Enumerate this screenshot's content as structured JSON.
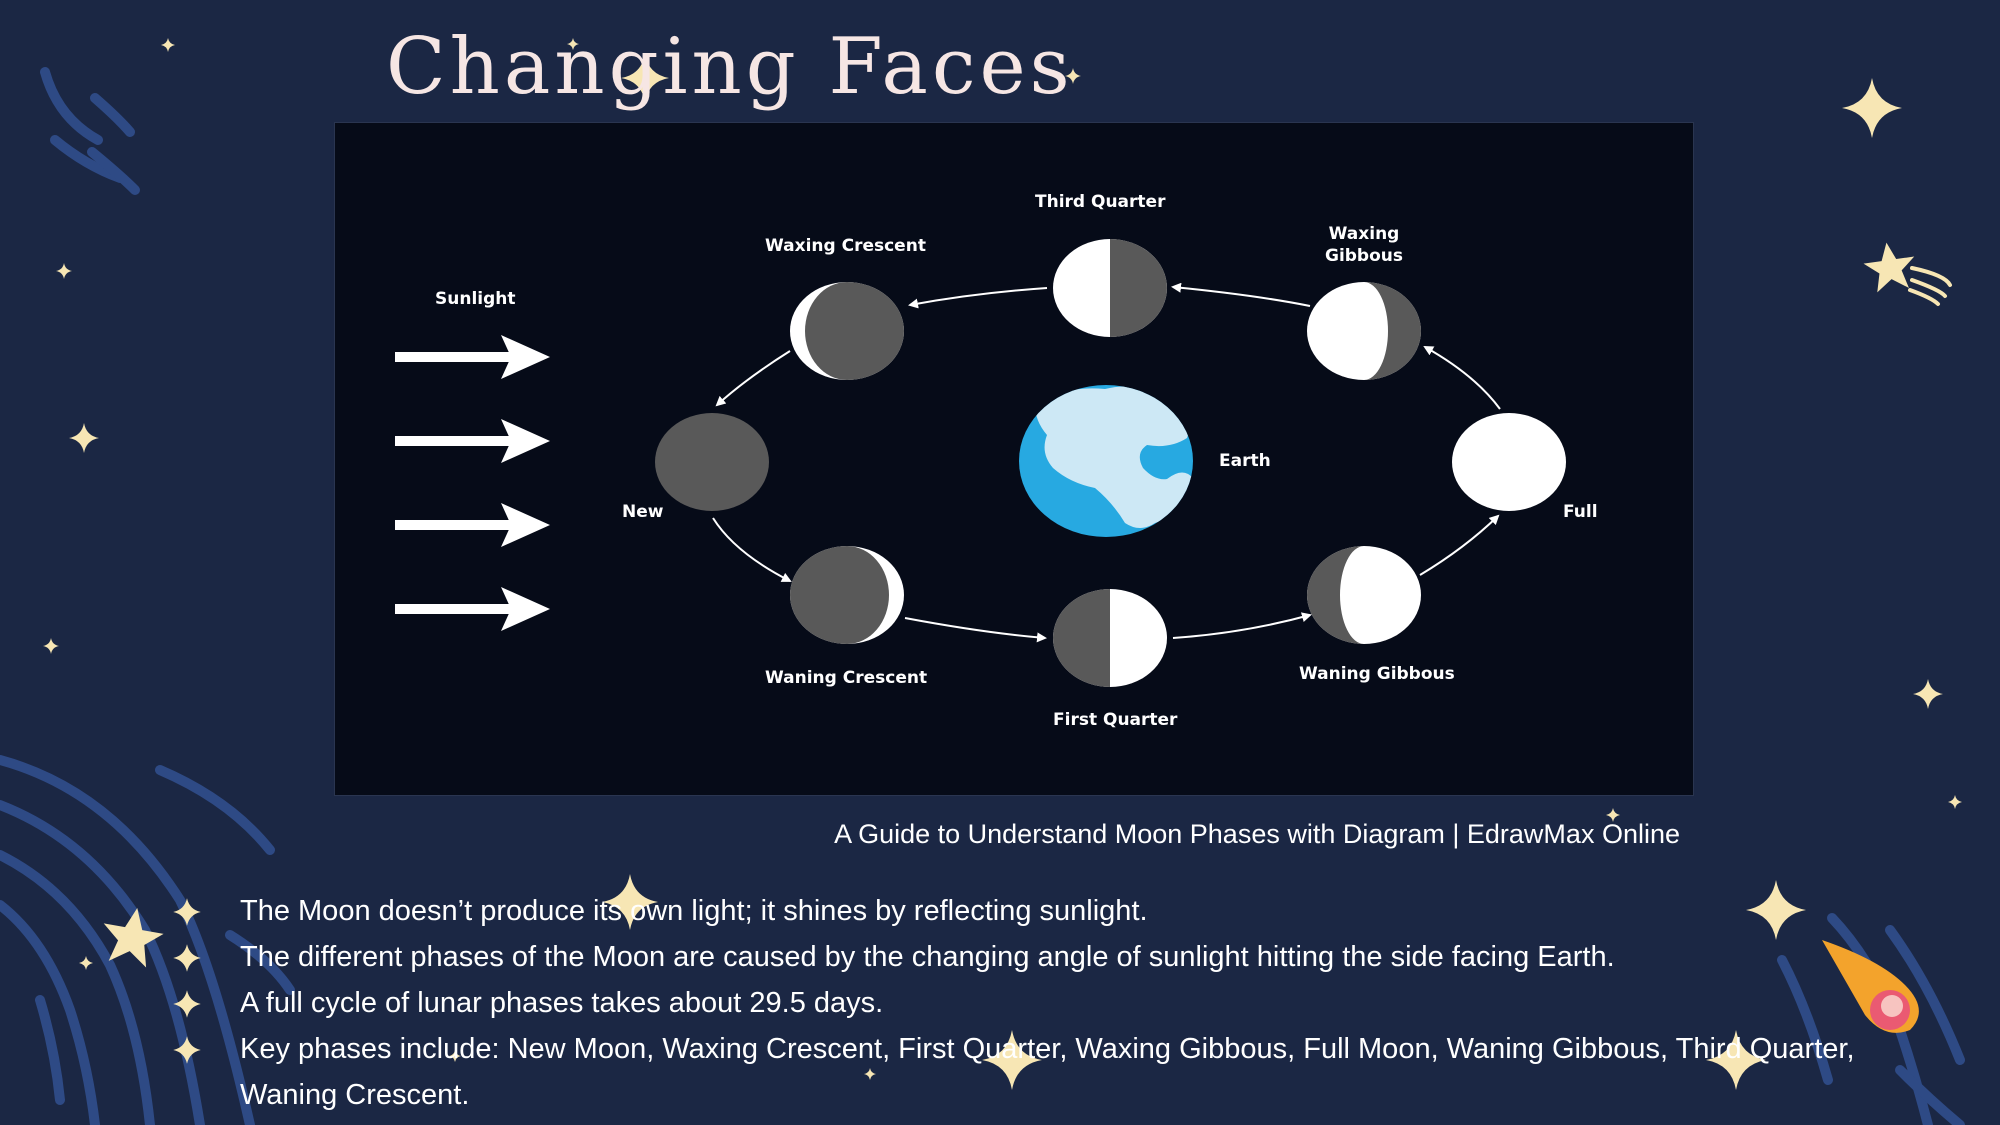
{
  "slide": {
    "title": "Changing Faces",
    "caption": "A Guide to Understand Moon Phases with Diagram | EdrawMax Online",
    "bullets": [
      "The Moon doesn’t produce its own light; it shines by reflecting sunlight.",
      "The different phases of the Moon are caused by the changing angle of sunlight hitting the side facing Earth.",
      "A full cycle of lunar phases takes about 29.5 days.",
      "Key phases include: New Moon, Waxing Crescent, First Quarter, Waxing Gibbous, Full Moon, Waning Gibbous, Third Quarter, Waning Crescent."
    ]
  },
  "diagram": {
    "sunlight_label": "Sunlight",
    "earth_label": "Earth",
    "phases": {
      "third_quarter": "Third Quarter",
      "waxing_crescent": "Waxing Crescent",
      "waxing_gibbous": "Waxing Gibbous",
      "new": "New",
      "full": "Full",
      "waning_crescent": "Waning Crescent",
      "first_quarter": "First Quarter",
      "waning_gibbous": "Waning Gibbous"
    }
  },
  "colors": {
    "background": "#1b2744",
    "panel": "#060b18",
    "moon_dark": "#595959",
    "moon_light": "#ffffff",
    "ocean": "#27a9e1",
    "land": "#cde8f5",
    "star": "#f7e6b4",
    "title": "#f6e6e4",
    "decor_swirl": "#2e4a85"
  },
  "icons": {
    "bullet": "four-point-star-icon",
    "decor": [
      "sparkle-icon",
      "shooting-star-icon",
      "comet-icon"
    ]
  }
}
